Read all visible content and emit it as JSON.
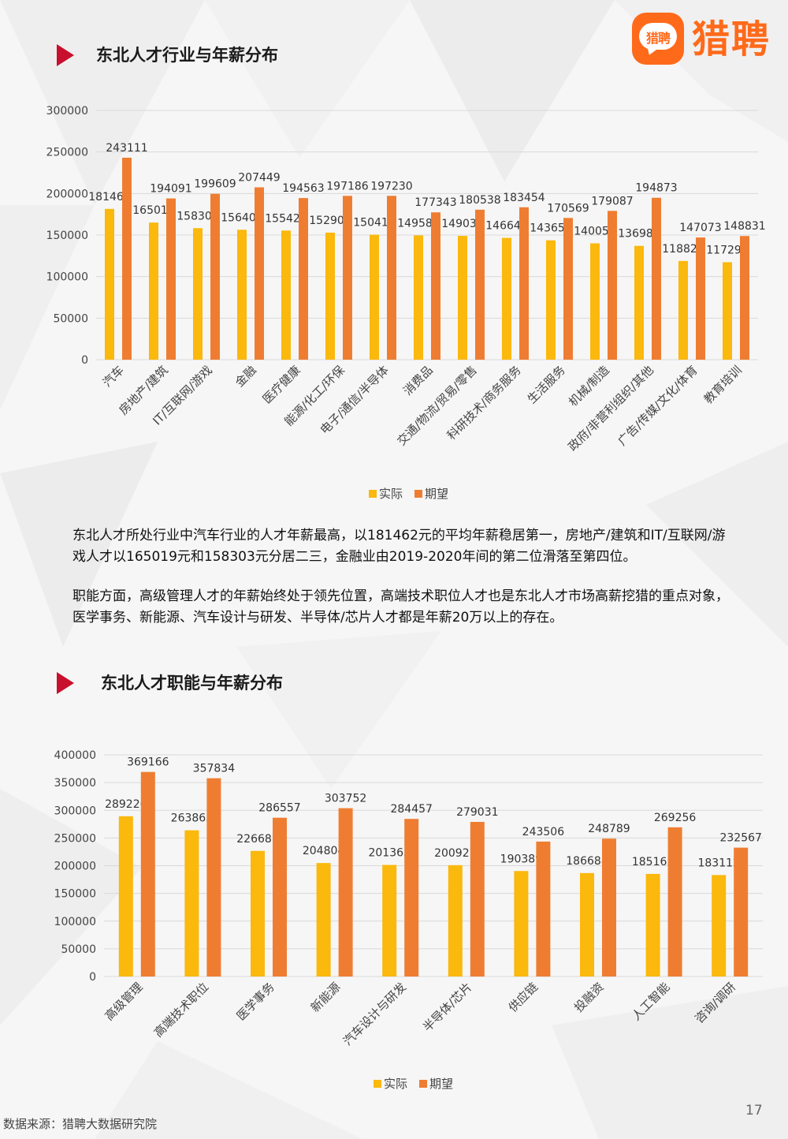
{
  "brand": {
    "logo_mini": "猎聘",
    "logo_text": "猎聘",
    "accent": "#ff6a1a"
  },
  "section1": {
    "title": "东北人才行业与年薪分布"
  },
  "section2": {
    "title": "东北人才职能与年薪分布"
  },
  "paragraphs": [
    "东北人才所处行业中汽车行业的人才年薪最高，以181462元的平均年薪稳居第一，房地产/建筑和IT/互联网/游戏人才以165019元和158303元分居二三，金融业由2019-2020年间的第二位滑落至第四位。",
    "职能方面，高级管理人才的年薪始终处于领先位置，高端技术职位人才也是东北人才市场高薪挖猎的重点对象，医学事务、新能源、汽车设计与研发、半导体/芯片人才都是年薪20万以上的存在。"
  ],
  "footer": {
    "source": "数据来源：猎聘大数据研究院",
    "page": "17"
  },
  "colors": {
    "actual": "#fbb80d",
    "expected": "#ef7d31",
    "gridline": "#d9d9d9"
  },
  "chart_data": [
    {
      "type": "bar",
      "title": "",
      "xlabel": "",
      "ylabel": "",
      "ylim": [
        0,
        300000
      ],
      "yticks": [
        "0",
        "50000",
        "100000",
        "150000",
        "200000",
        "250000",
        "300000"
      ],
      "grid": true,
      "legend": "bottom",
      "categories": [
        "汽车",
        "房地产/建筑",
        "IT/互联网/游戏",
        "金融",
        "医疗健康",
        "能源/化工/环保",
        "电子/通信/半导体",
        "消费品",
        "交通/物流/贸易/零售",
        "科研技术/商务服务",
        "生活服务",
        "机械/制造",
        "政府/非营利组织/其他",
        "广告/传媒/文化/体育",
        "教育培训"
      ],
      "series": [
        {
          "name": "实际",
          "values": [
            181462,
            165019,
            158303,
            156403,
            155429,
            152902,
            150416,
            149582,
            149033,
            146642,
            143658,
            140054,
            136989,
            118823,
            117296
          ]
        },
        {
          "name": "期望",
          "values": [
            243111,
            194091,
            199609,
            207449,
            194563,
            197186,
            197230,
            177343,
            180538,
            183454,
            170569,
            179087,
            194873,
            147073,
            148831
          ]
        }
      ]
    },
    {
      "type": "bar",
      "title": "",
      "xlabel": "",
      "ylabel": "",
      "ylim": [
        0,
        400000
      ],
      "yticks": [
        "0",
        "50000",
        "100000",
        "150000",
        "200000",
        "250000",
        "300000",
        "350000",
        "400000"
      ],
      "grid": true,
      "legend": "bottom",
      "categories": [
        "高级管理",
        "高端技术职位",
        "医学事务",
        "新能源",
        "汽车设计与研发",
        "半导体/芯片",
        "供应链",
        "投融资",
        "人工智能",
        "咨询/调研"
      ],
      "series": [
        {
          "name": "实际",
          "values": [
            289226,
            263865,
            226681,
            204804,
            201365,
            200927,
            190389,
            186688,
            185165,
            183112
          ]
        },
        {
          "name": "期望",
          "values": [
            369166,
            357834,
            286557,
            303752,
            284457,
            279031,
            243506,
            248789,
            269256,
            232567
          ]
        }
      ]
    }
  ]
}
